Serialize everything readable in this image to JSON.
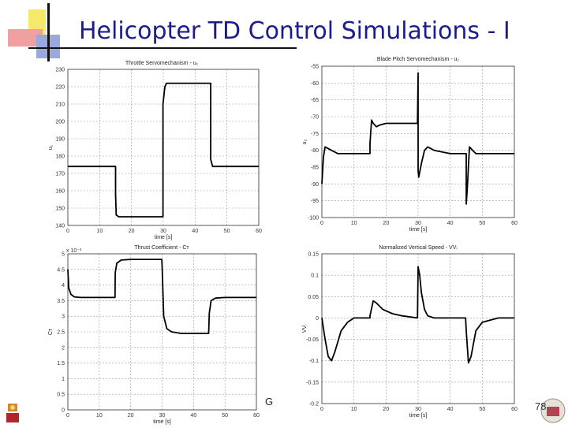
{
  "slide": {
    "title": "Helicopter TD Control Simulations - I",
    "page_number": "78",
    "stray_letter": "G"
  },
  "chart_data": [
    {
      "type": "line",
      "title": "Throttle Servomechanism - u₁",
      "xlabel": "time [s]",
      "ylabel": "u₁",
      "xlim": [
        0,
        60
      ],
      "ylim": [
        140,
        230
      ],
      "xticks": [
        0,
        10,
        20,
        30,
        40,
        50,
        60
      ],
      "yticks": [
        140,
        150,
        160,
        170,
        180,
        190,
        200,
        210,
        220,
        230
      ],
      "grid": true,
      "x": [
        0,
        15,
        15,
        15.2,
        16,
        29.9,
        29.9,
        30.5,
        31,
        44.9,
        44.9,
        45.5,
        60
      ],
      "y": [
        174,
        174,
        158,
        146,
        145,
        145,
        210,
        220,
        222,
        222,
        178,
        174,
        174
      ]
    },
    {
      "type": "line",
      "title": "Blade Pitch Servomechanism - u₂",
      "xlabel": "time [s]",
      "ylabel": "u₂",
      "xlim": [
        0,
        60
      ],
      "ylim": [
        -100,
        -55
      ],
      "xticks": [
        0,
        10,
        20,
        30,
        40,
        50,
        60
      ],
      "yticks": [
        -55,
        -60,
        -65,
        -70,
        -75,
        -80,
        -85,
        -90,
        -95,
        -100
      ],
      "grid": true,
      "x": [
        0,
        0.5,
        1,
        3,
        5,
        8,
        15,
        15,
        15.5,
        16,
        17,
        18,
        20,
        25,
        29.8,
        30,
        30,
        30.2,
        31,
        32,
        33,
        35,
        40,
        44.8,
        45,
        45,
        45.3,
        46,
        47,
        48,
        50,
        60
      ],
      "y": [
        -90,
        -82,
        -79,
        -80,
        -81,
        -81,
        -81,
        -78,
        -71,
        -72,
        -73,
        -72.5,
        -72,
        -72,
        -72,
        -57,
        -86,
        -88,
        -84,
        -80,
        -79,
        -80,
        -81,
        -81,
        -81,
        -96,
        -92,
        -79,
        -80,
        -81,
        -81,
        -81
      ]
    },
    {
      "type": "line",
      "title": "Thrust Coefficient - Cт",
      "xlabel": "time [s]",
      "ylabel": "Cт",
      "axis_multiplier": "x 10⁻³",
      "xlim": [
        0,
        60
      ],
      "ylim": [
        0,
        5
      ],
      "xticks": [
        0,
        10,
        20,
        30,
        40,
        50,
        60
      ],
      "yticks": [
        0,
        0.5,
        1,
        1.5,
        2,
        2.5,
        3,
        3.5,
        4,
        4.5,
        5
      ],
      "grid": true,
      "x": [
        0,
        0.3,
        1,
        2,
        4,
        8,
        15,
        15.1,
        15.6,
        17,
        20,
        29.9,
        30,
        30.5,
        31.5,
        33,
        36,
        44.8,
        45,
        45.6,
        47,
        50,
        60
      ],
      "y": [
        4.5,
        3.9,
        3.7,
        3.62,
        3.6,
        3.6,
        3.6,
        4.4,
        4.7,
        4.8,
        4.82,
        4.82,
        4.6,
        3.0,
        2.6,
        2.5,
        2.45,
        2.45,
        3.1,
        3.5,
        3.58,
        3.6,
        3.6
      ]
    },
    {
      "type": "line",
      "title": "Normalized Vertical Speed - VVᵢ",
      "xlabel": "time [s]",
      "ylabel": "VVᵢ",
      "xlim": [
        0,
        60
      ],
      "ylim": [
        -0.2,
        0.15
      ],
      "xticks": [
        0,
        10,
        20,
        30,
        40,
        50,
        60
      ],
      "yticks": [
        -0.2,
        -0.15,
        -0.1,
        -0.05,
        0,
        0.05,
        0.1,
        0.15
      ],
      "grid": true,
      "x": [
        0,
        1,
        2,
        3,
        4,
        6,
        8,
        10,
        15,
        15,
        16,
        17,
        19,
        22,
        25,
        29.8,
        30,
        30.5,
        31,
        32,
        33,
        35,
        40,
        44.8,
        45,
        45.7,
        46.5,
        48,
        50,
        55,
        60
      ],
      "y": [
        0,
        -0.05,
        -0.09,
        -0.1,
        -0.08,
        -0.03,
        -0.01,
        0,
        0,
        0.005,
        0.04,
        0.035,
        0.02,
        0.01,
        0.005,
        0,
        0.12,
        0.1,
        0.06,
        0.02,
        0.005,
        0,
        0,
        0,
        -0.03,
        -0.105,
        -0.09,
        -0.03,
        -0.01,
        0,
        0
      ]
    }
  ]
}
